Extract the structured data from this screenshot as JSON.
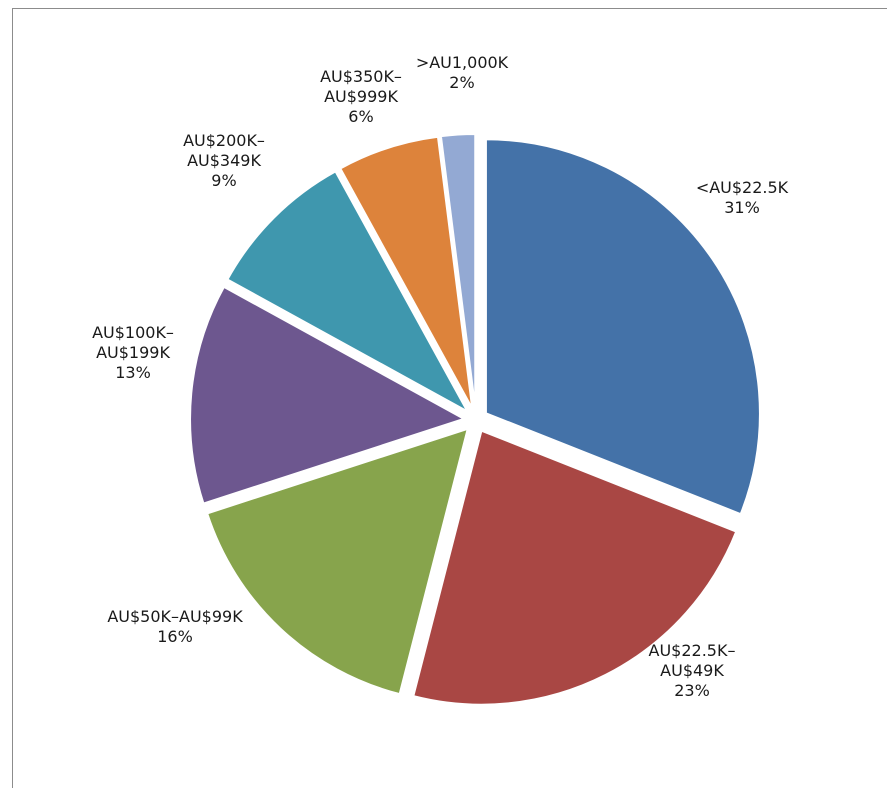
{
  "chart_data": {
    "type": "pie",
    "slices": [
      {
        "label_lines": [
          "<AU$22.5K"
        ],
        "value": 31,
        "percent_label": "31%",
        "color": "#4472a8"
      },
      {
        "label_lines": [
          "AU$22.5K–",
          "AU$49K"
        ],
        "value": 23,
        "percent_label": "23%",
        "color": "#a94744"
      },
      {
        "label_lines": [
          "AU$50K–AU$99K"
        ],
        "value": 16,
        "percent_label": "16%",
        "color": "#87a44c"
      },
      {
        "label_lines": [
          "AU$100K–",
          "AU$199K"
        ],
        "value": 13,
        "percent_label": "13%",
        "color": "#6d578f"
      },
      {
        "label_lines": [
          "AU$200K–",
          "AU$349K"
        ],
        "value": 9,
        "percent_label": "9%",
        "color": "#3f97ae"
      },
      {
        "label_lines": [
          "AU$350K–",
          "AU$999K"
        ],
        "value": 6,
        "percent_label": "6%",
        "color": "#dd833b"
      },
      {
        "label_lines": [
          ">AU1,000K"
        ],
        "value": 2,
        "percent_label": "2%",
        "color": "#93a9d3"
      }
    ],
    "exploded": true,
    "start_angle_deg": 0,
    "direction": "clockwise",
    "legend": "none"
  }
}
